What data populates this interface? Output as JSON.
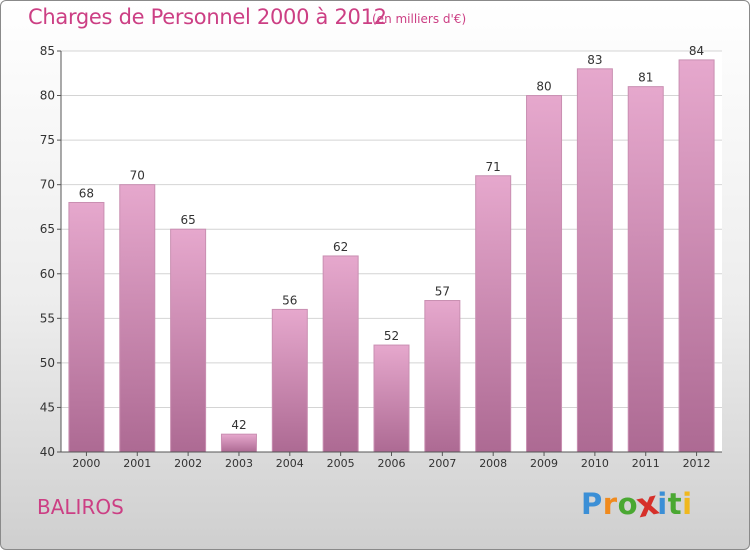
{
  "header": {
    "title": "Charges de Personnel 2000 à 2012",
    "subtitle": "(en milliers d'€)"
  },
  "footer": {
    "commune": "BALIROS",
    "logo_text": "Proxiti"
  },
  "colors": {
    "accent": "#cc3f84",
    "bar_top": "#e6a8cd",
    "bar_bottom": "#ad6a93",
    "logo": [
      "#3b8fd6",
      "#f08a1d",
      "#4aa832",
      "#d6302a",
      "#3b8fd6",
      "#4aa832",
      "#f0b81d"
    ]
  },
  "chart_data": {
    "type": "bar",
    "categories": [
      "2000",
      "2001",
      "2002",
      "2003",
      "2004",
      "2005",
      "2006",
      "2007",
      "2008",
      "2009",
      "2010",
      "2011",
      "2012"
    ],
    "values": [
      68,
      70,
      65,
      42,
      56,
      62,
      52,
      57,
      71,
      80,
      83,
      81,
      84
    ],
    "ylim": [
      40,
      85
    ],
    "yticks": [
      40,
      45,
      50,
      55,
      60,
      65,
      70,
      75,
      80,
      85
    ],
    "grid": true,
    "data_labels": true,
    "legend": "none"
  }
}
